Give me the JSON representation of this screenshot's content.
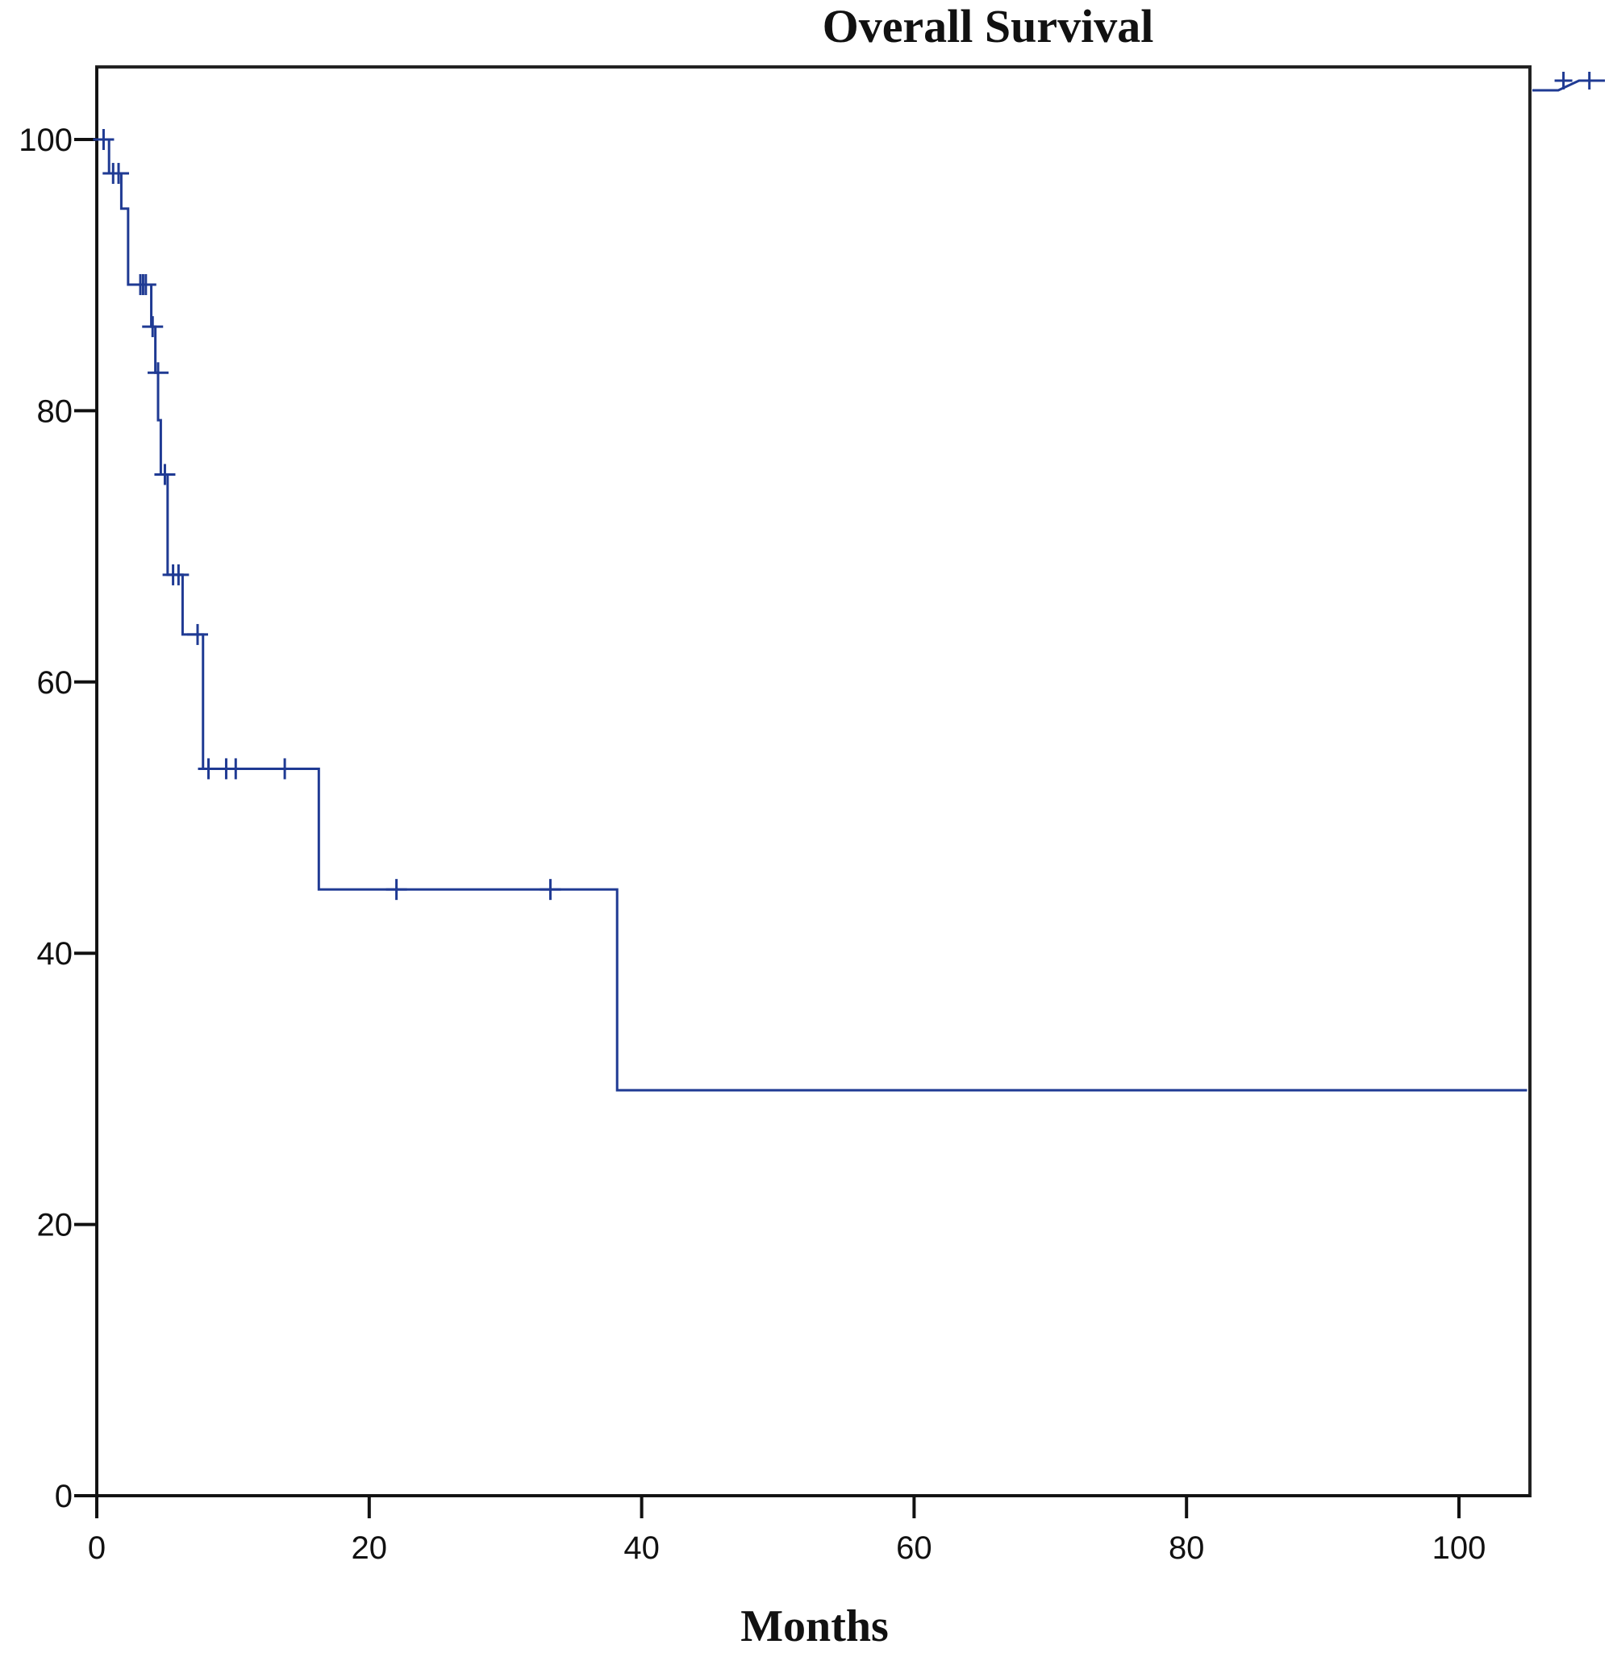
{
  "chart_data": {
    "type": "line",
    "title": "Overall Survival",
    "xlabel": "Months",
    "ylabel": "",
    "xlim": [
      0,
      105
    ],
    "ylim": [
      0,
      105
    ],
    "x_ticks": [
      0,
      20,
      40,
      60,
      80,
      100
    ],
    "y_ticks": [
      0,
      20,
      40,
      60,
      80,
      100
    ],
    "grid": false,
    "step": true,
    "line_color": "#1f3a93",
    "series": [
      {
        "name": "",
        "x": [
          0,
          0.9,
          1.8,
          2.3,
          4.0,
          4.3,
          4.5,
          4.7,
          5.2,
          6.3,
          7.8,
          16.3,
          38.2,
          105
        ],
        "y": [
          100,
          97.5,
          94.9,
          89.3,
          86.2,
          82.8,
          79.3,
          75.3,
          67.9,
          63.5,
          53.6,
          44.7,
          29.9,
          29.9
        ]
      }
    ],
    "censored": {
      "x": [
        0.5,
        1.2,
        1.6,
        3.2,
        3.4,
        3.6,
        4.1,
        4.5,
        5.0,
        5.6,
        6.0,
        7.4,
        8.2,
        9.5,
        10.2,
        13.8,
        22.0,
        33.3
      ],
      "y": [
        100,
        97.5,
        97.5,
        89.3,
        89.3,
        89.3,
        86.2,
        82.8,
        75.3,
        67.9,
        67.9,
        63.5,
        53.6,
        53.6,
        53.6,
        53.6,
        44.7,
        44.7
      ]
    },
    "legend": {
      "placement": "right",
      "x": [
        0,
        2.5,
        4.5,
        7
      ],
      "y": [
        0,
        0,
        1,
        1
      ],
      "censor_x": [
        3,
        5.5
      ]
    }
  }
}
